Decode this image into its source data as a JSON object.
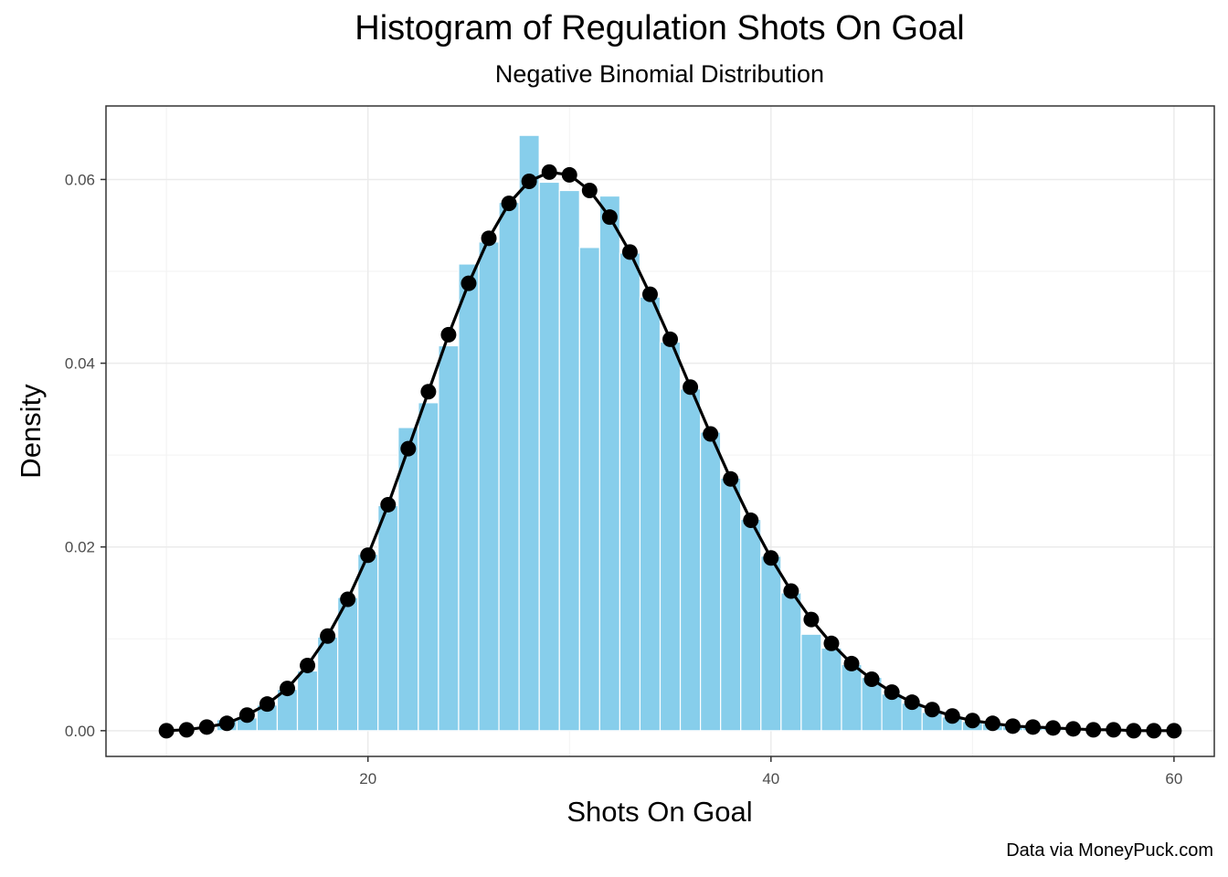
{
  "chart_data": {
    "type": "bar",
    "title": "Histogram of Regulation Shots On Goal",
    "subtitle": "Negative Binomial Distribution",
    "xlabel": "Shots On Goal",
    "ylabel": "Density",
    "caption": "Data via MoneyPuck.com",
    "xlim": [
      7,
      62
    ],
    "ylim": [
      -0.0028,
      0.068
    ],
    "x_ticks": [
      20,
      40,
      60
    ],
    "x_minor_ticks": [
      10,
      30,
      50
    ],
    "y_ticks": [
      0.0,
      0.02,
      0.04,
      0.06
    ],
    "y_tick_labels": [
      "0.00",
      "0.02",
      "0.04",
      "0.06"
    ],
    "y_minor_ticks": [
      0.01,
      0.03,
      0.05
    ],
    "grid": true,
    "bar_color": "#87CEEB",
    "line_color": "#000000",
    "histogram": {
      "x": [
        13,
        14,
        15,
        16,
        17,
        18,
        19,
        20,
        21,
        22,
        23,
        24,
        25,
        26,
        27,
        28,
        29,
        30,
        31,
        32,
        33,
        34,
        35,
        36,
        37,
        38,
        39,
        40,
        41,
        42,
        43,
        44,
        45,
        46,
        47,
        48,
        49,
        50,
        51,
        52,
        53,
        54,
        55,
        56,
        57,
        58,
        59
      ],
      "values": [
        0.0012,
        0.0014,
        0.0028,
        0.0045,
        0.0065,
        0.0102,
        0.0145,
        0.0192,
        0.0245,
        0.033,
        0.0357,
        0.0419,
        0.0508,
        0.0532,
        0.0575,
        0.0648,
        0.0597,
        0.0588,
        0.0526,
        0.0582,
        0.052,
        0.0472,
        0.0423,
        0.0372,
        0.0325,
        0.0275,
        0.023,
        0.019,
        0.015,
        0.0105,
        0.009,
        0.0072,
        0.0058,
        0.004,
        0.003,
        0.002,
        0.0015,
        0.001,
        0.0008,
        0.0005,
        0.0004,
        0.0003,
        0.0002,
        0.0002,
        0.0001,
        0.0001,
        0.0001
      ]
    },
    "series": [
      {
        "type": "line",
        "x": [
          10,
          11,
          12,
          13,
          14,
          15,
          16,
          17,
          18,
          19,
          20,
          21,
          22,
          23,
          24,
          25,
          26,
          27,
          28,
          29,
          30,
          31,
          32,
          33,
          34,
          35,
          36,
          37,
          38,
          39,
          40,
          41,
          42,
          43,
          44,
          45,
          46,
          47,
          48,
          49,
          50,
          51,
          52,
          53,
          54,
          55,
          56,
          57,
          58,
          59,
          60
        ],
        "values": [
          0.0,
          0.0001,
          0.0004,
          0.0008,
          0.0017,
          0.0029,
          0.0046,
          0.0071,
          0.0103,
          0.0143,
          0.0191,
          0.0246,
          0.0307,
          0.0369,
          0.0431,
          0.0487,
          0.0536,
          0.0574,
          0.0598,
          0.0608,
          0.0605,
          0.0588,
          0.0559,
          0.0521,
          0.0475,
          0.0426,
          0.0374,
          0.0323,
          0.0274,
          0.0229,
          0.0188,
          0.0152,
          0.0121,
          0.0095,
          0.0073,
          0.0056,
          0.0042,
          0.0031,
          0.0023,
          0.0016,
          0.0011,
          0.0008,
          0.0005,
          0.0004,
          0.0003,
          0.0002,
          0.0001,
          0.0001,
          0.0,
          0.0,
          0.0
        ]
      }
    ]
  }
}
